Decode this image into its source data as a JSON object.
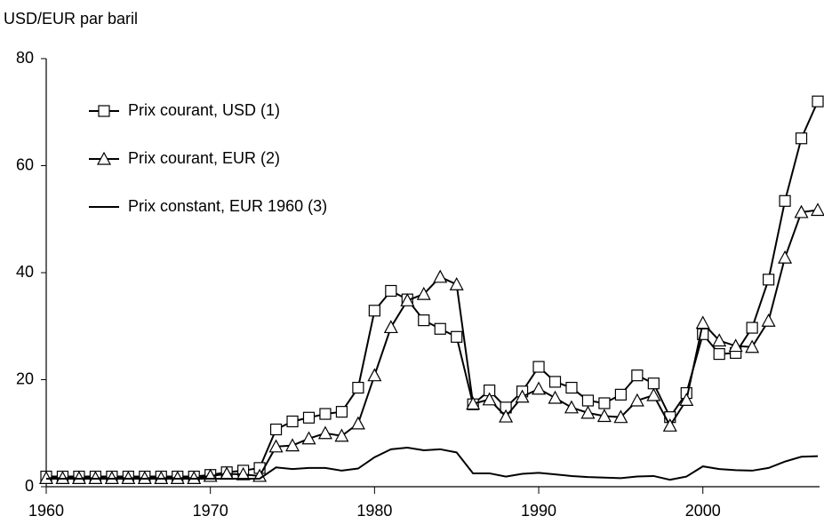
{
  "chart_data": {
    "type": "line",
    "y_label": "USD/EUR par baril",
    "x": [
      1960,
      1961,
      1962,
      1963,
      1964,
      1965,
      1966,
      1967,
      1968,
      1969,
      1970,
      1971,
      1972,
      1973,
      1974,
      1975,
      1976,
      1977,
      1978,
      1979,
      1980,
      1981,
      1982,
      1983,
      1984,
      1985,
      1986,
      1987,
      1988,
      1989,
      1990,
      1991,
      1992,
      1993,
      1994,
      1995,
      1996,
      1997,
      1998,
      1999,
      2000,
      2001,
      2002,
      2003,
      2004,
      2005,
      2006,
      2007
    ],
    "series": [
      {
        "name": "Prix courant, USD (1)",
        "color": "#000000",
        "marker": "square",
        "values": [
          1.9,
          1.9,
          1.9,
          1.9,
          1.9,
          1.9,
          1.9,
          1.9,
          1.9,
          1.9,
          2.2,
          2.7,
          3.0,
          3.5,
          10.7,
          12.2,
          12.9,
          13.6,
          14.0,
          18.5,
          32.9,
          36.6,
          35.0,
          31.1,
          29.5,
          28.0,
          15.4,
          18.0,
          14.8,
          17.8,
          22.4,
          19.6,
          18.5,
          16.1,
          15.6,
          17.2,
          20.8,
          19.3,
          13.0,
          17.5,
          28.5,
          24.8,
          25.0,
          29.7,
          38.7,
          53.4,
          65.1,
          72.0
        ]
      },
      {
        "name": "Prix courant, EUR (2)",
        "color": "#000000",
        "marker": "triangle",
        "values": [
          1.6,
          1.6,
          1.6,
          1.6,
          1.6,
          1.6,
          1.6,
          1.6,
          1.6,
          1.6,
          2.0,
          2.4,
          2.3,
          2.0,
          7.5,
          7.7,
          9.0,
          10.0,
          9.5,
          11.8,
          20.8,
          29.8,
          34.8,
          36.0,
          39.2,
          37.8,
          15.5,
          16.3,
          13.1,
          16.8,
          18.3,
          16.6,
          14.8,
          13.8,
          13.2,
          13.0,
          16.1,
          17.1,
          11.4,
          16.2,
          30.6,
          27.3,
          26.3,
          26.1,
          31.0,
          42.8,
          51.3,
          51.7
        ]
      },
      {
        "name": "Prix constant, EUR 1960 (3)",
        "color": "#000000",
        "marker": "none",
        "values": [
          1.5,
          1.5,
          1.5,
          1.5,
          1.5,
          1.5,
          1.5,
          1.5,
          1.5,
          1.5,
          1.5,
          1.5,
          1.5,
          1.5,
          3.6,
          3.3,
          3.5,
          3.5,
          3.0,
          3.4,
          5.5,
          7.0,
          7.3,
          6.8,
          7.0,
          6.4,
          2.5,
          2.5,
          1.9,
          2.4,
          2.6,
          2.3,
          2.0,
          1.8,
          1.7,
          1.6,
          1.9,
          2.0,
          1.3,
          1.9,
          3.8,
          3.3,
          3.1,
          3.0,
          3.5,
          4.7,
          5.6,
          5.7
        ]
      }
    ],
    "xlim": [
      1960,
      2007
    ],
    "xticks": [
      1960,
      1970,
      1980,
      1990,
      2000
    ],
    "ylim": [
      0,
      80
    ],
    "yticks": [
      0,
      20,
      40,
      60,
      80
    ],
    "grid": false,
    "legend": "upper left"
  }
}
